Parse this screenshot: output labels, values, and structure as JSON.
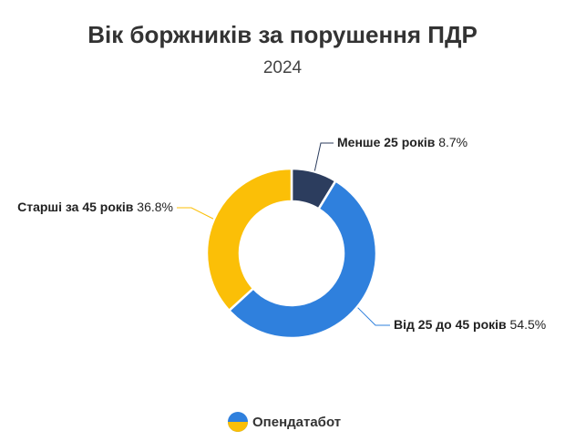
{
  "chart_data": {
    "type": "donut",
    "title": "Вік боржників за порушення ПДР",
    "subtitle": "2024",
    "categories": [
      "Менше 25 років",
      "Від 25 до 45 років",
      "Старші за 45 років"
    ],
    "values": [
      8.7,
      54.5,
      36.8
    ],
    "value_labels": [
      "8.7%",
      "54.5%",
      "36.8%"
    ],
    "colors": [
      "#2c3d5e",
      "#2f80dd",
      "#fbbf07"
    ]
  },
  "footer": {
    "brand": "Опендатабот"
  }
}
